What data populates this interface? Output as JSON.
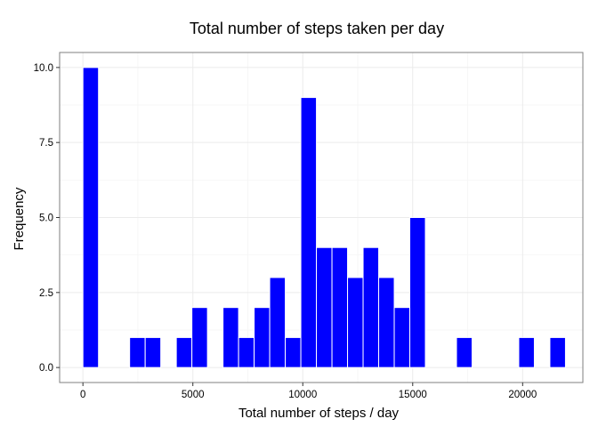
{
  "colors": {
    "bar_fill": "#0000ff",
    "bar_outline": "#ffffff",
    "panel_border": "#7f7f7f",
    "grid_major": "#ebebeb",
    "grid_minor": "#f5f5f5",
    "tick_mark": "#333333"
  },
  "chart_data": {
    "type": "bar",
    "title": "Total number of steps taken per day",
    "xlabel": "Total number of steps / day",
    "ylabel": "Frequency",
    "xlim": [
      -1060,
      22740
    ],
    "ylim": [
      -0.5,
      10.5
    ],
    "x_ticks": [
      0,
      5000,
      10000,
      15000,
      20000
    ],
    "x_tick_labels": [
      "0",
      "5000",
      "10000",
      "15000",
      "20000"
    ],
    "y_ticks": [
      0,
      2.5,
      5,
      7.5,
      10
    ],
    "y_tick_labels": [
      "0.0",
      "2.5",
      "5.0",
      "7.5",
      "10.0"
    ],
    "grid": true,
    "bin_width": 708,
    "bin_starts": [
      0,
      708,
      1416,
      2124,
      2832,
      3540,
      4248,
      4956,
      5664,
      6372,
      7080,
      7788,
      8496,
      9204,
      9912,
      10620,
      11328,
      12036,
      12744,
      13452,
      14160,
      14868,
      15576,
      16284,
      16992,
      17700,
      18408,
      19116,
      19824,
      20532,
      21240
    ],
    "values": [
      10,
      0,
      0,
      1,
      1,
      0,
      1,
      2,
      0,
      2,
      1,
      2,
      3,
      1,
      9,
      4,
      4,
      3,
      4,
      3,
      2,
      5,
      0,
      0,
      1,
      0,
      0,
      0,
      1,
      0,
      1
    ]
  }
}
